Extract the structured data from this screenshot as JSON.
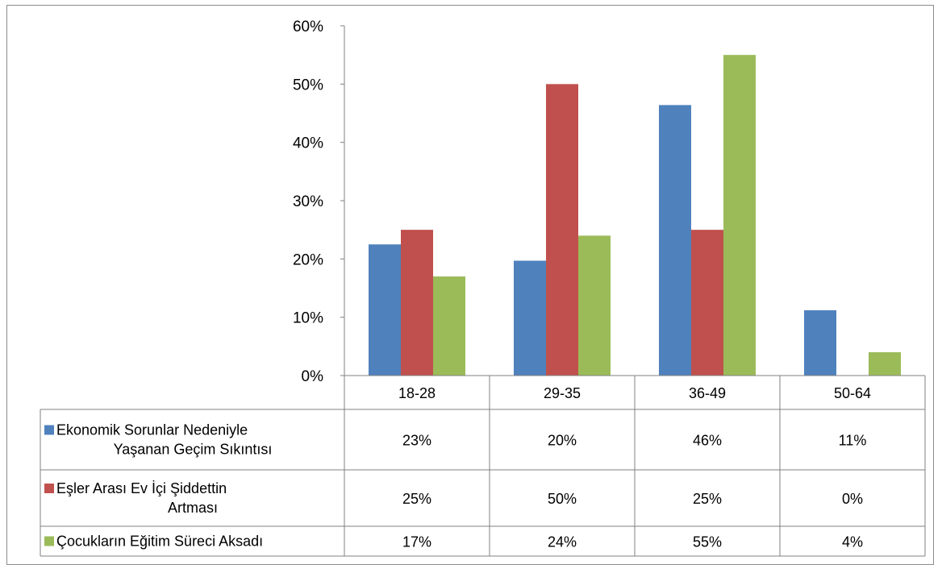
{
  "chart_data": {
    "type": "bar",
    "categories": [
      "18-28",
      "29-35",
      "36-49",
      "50-64"
    ],
    "y_ticks": [
      "0%",
      "10%",
      "20%",
      "30%",
      "40%",
      "50%",
      "60%"
    ],
    "ylim": [
      0,
      60
    ],
    "grid": false,
    "legend": "data-table",
    "series": [
      {
        "name": "Ekonomik Sorunlar Nedeniyle Yaşanan Geçim Sıkıntısı",
        "name_lines": [
          "Ekonomik Sorunlar Nedeniyle",
          "Yaşanan Geçim Sıkıntısı"
        ],
        "color": "#4f81bd",
        "values": [
          22.5,
          19.7,
          46.4,
          11.2
        ],
        "labels": [
          "23%",
          "20%",
          "46%",
          "11%"
        ]
      },
      {
        "name": "Eşler Arası Ev İçi Şiddettin Artması",
        "name_lines": [
          "Eşler Arası Ev İçi Şiddettin",
          "Artması"
        ],
        "color": "#c0504d",
        "values": [
          25,
          50,
          25,
          0
        ],
        "labels": [
          "25%",
          "50%",
          "25%",
          "0%"
        ]
      },
      {
        "name": "Çocukların Eğitim Süreci Aksadı",
        "name_lines": [
          "Çocukların Eğitim Süreci Aksadı"
        ],
        "color": "#9bbb59",
        "values": [
          17,
          24,
          55,
          4
        ],
        "labels": [
          "17%",
          "24%",
          "55%",
          "4%"
        ]
      }
    ]
  }
}
